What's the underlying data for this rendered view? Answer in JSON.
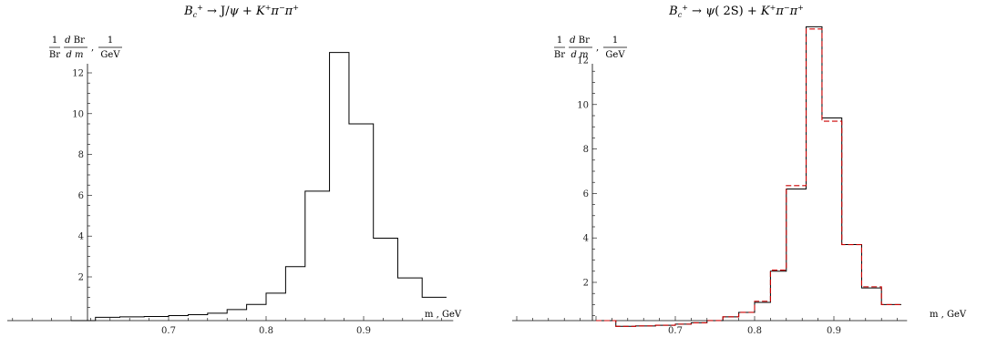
{
  "chart_data": [
    {
      "type": "line",
      "style": "step-histogram",
      "title": "B_c^+ → J/ψ + K^+ π^- π^+",
      "ylabel": "1/Br dBr/dm, 1/GeV",
      "xlabel": "m , GeV",
      "xlim": [
        0.6,
        0.99
      ],
      "ylim": [
        0,
        13.5
      ],
      "xticks": [
        0.7,
        0.8,
        0.9
      ],
      "yticks": [
        2,
        4,
        6,
        8,
        10,
        12
      ],
      "series": [
        {
          "color": "#000000",
          "dashed": false,
          "edges": [
            0.6,
            0.625,
            0.65,
            0.675,
            0.7,
            0.72,
            0.74,
            0.76,
            0.78,
            0.8,
            0.82,
            0.84,
            0.865,
            0.885,
            0.91,
            0.935,
            0.96,
            0.985
          ],
          "values": [
            0.0,
            0.02,
            0.04,
            0.06,
            0.1,
            0.15,
            0.22,
            0.4,
            0.65,
            1.2,
            2.5,
            6.2,
            13.0,
            9.5,
            3.9,
            1.95,
            1.0
          ]
        }
      ]
    },
    {
      "type": "line",
      "style": "step-histogram",
      "title": "B_c^+ → ψ(2S) + K^+ π^- π^+",
      "ylabel": "1/Br dBr/dm, 1/GeV",
      "xlabel": "m , GeV",
      "xlim": [
        0.6,
        0.99
      ],
      "ylim": [
        0,
        14
      ],
      "xticks": [
        0.7,
        0.8,
        0.9
      ],
      "yticks": [
        2,
        4,
        6,
        8,
        10,
        12
      ],
      "series": [
        {
          "color": "#000000",
          "dashed": false,
          "edges": [
            0.6,
            0.625,
            0.65,
            0.675,
            0.7,
            0.72,
            0.74,
            0.76,
            0.78,
            0.8,
            0.82,
            0.84,
            0.865,
            0.885,
            0.91,
            0.935,
            0.96,
            0.985
          ],
          "values": [
            0.0,
            0.02,
            0.04,
            0.07,
            0.12,
            0.18,
            0.28,
            0.45,
            0.65,
            1.1,
            2.5,
            6.2,
            13.5,
            9.4,
            3.7,
            1.75,
            1.0
          ]
        },
        {
          "color": "#cc0000",
          "dashed": true,
          "edges": [
            0.6,
            0.625,
            0.65,
            0.675,
            0.7,
            0.72,
            0.74,
            0.76,
            0.78,
            0.8,
            0.82,
            0.84,
            0.865,
            0.885,
            0.91,
            0.935,
            0.96,
            0.985
          ],
          "values": [
            0.0,
            0.02,
            0.04,
            0.07,
            0.12,
            0.18,
            0.28,
            0.45,
            0.65,
            1.15,
            2.55,
            6.35,
            13.4,
            9.25,
            3.7,
            1.8,
            1.0
          ]
        }
      ]
    }
  ]
}
